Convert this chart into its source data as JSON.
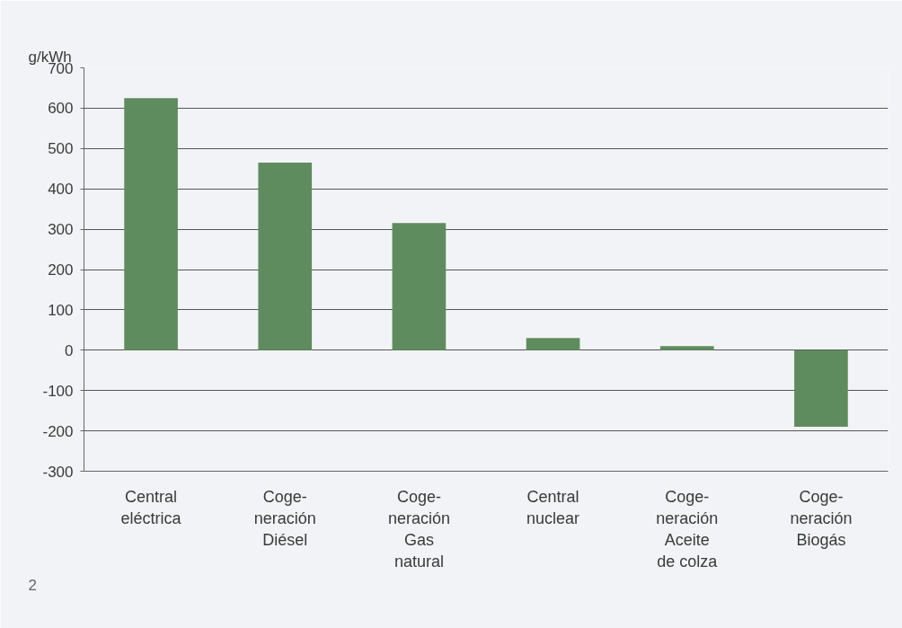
{
  "chart_data": {
    "type": "bar",
    "ylabel": "g/kWh",
    "categories": [
      "Central\neléctrica",
      "Coge-\nneración\nDiésel",
      "Coge-\nneración\nGas\nnatural",
      "Central\nnuclear",
      "Coge-\nneración\nAceite\nde colza",
      "Coge-\nneración\nBiogás"
    ],
    "values": [
      625,
      465,
      315,
      30,
      10,
      -190
    ],
    "color": "#5f8c5f",
    "ylim": [
      -300,
      700
    ],
    "yticks": [
      -300,
      -200,
      -100,
      0,
      100,
      200,
      300,
      400,
      500,
      600,
      700
    ],
    "grid": "y",
    "annotations": [
      "2"
    ]
  }
}
